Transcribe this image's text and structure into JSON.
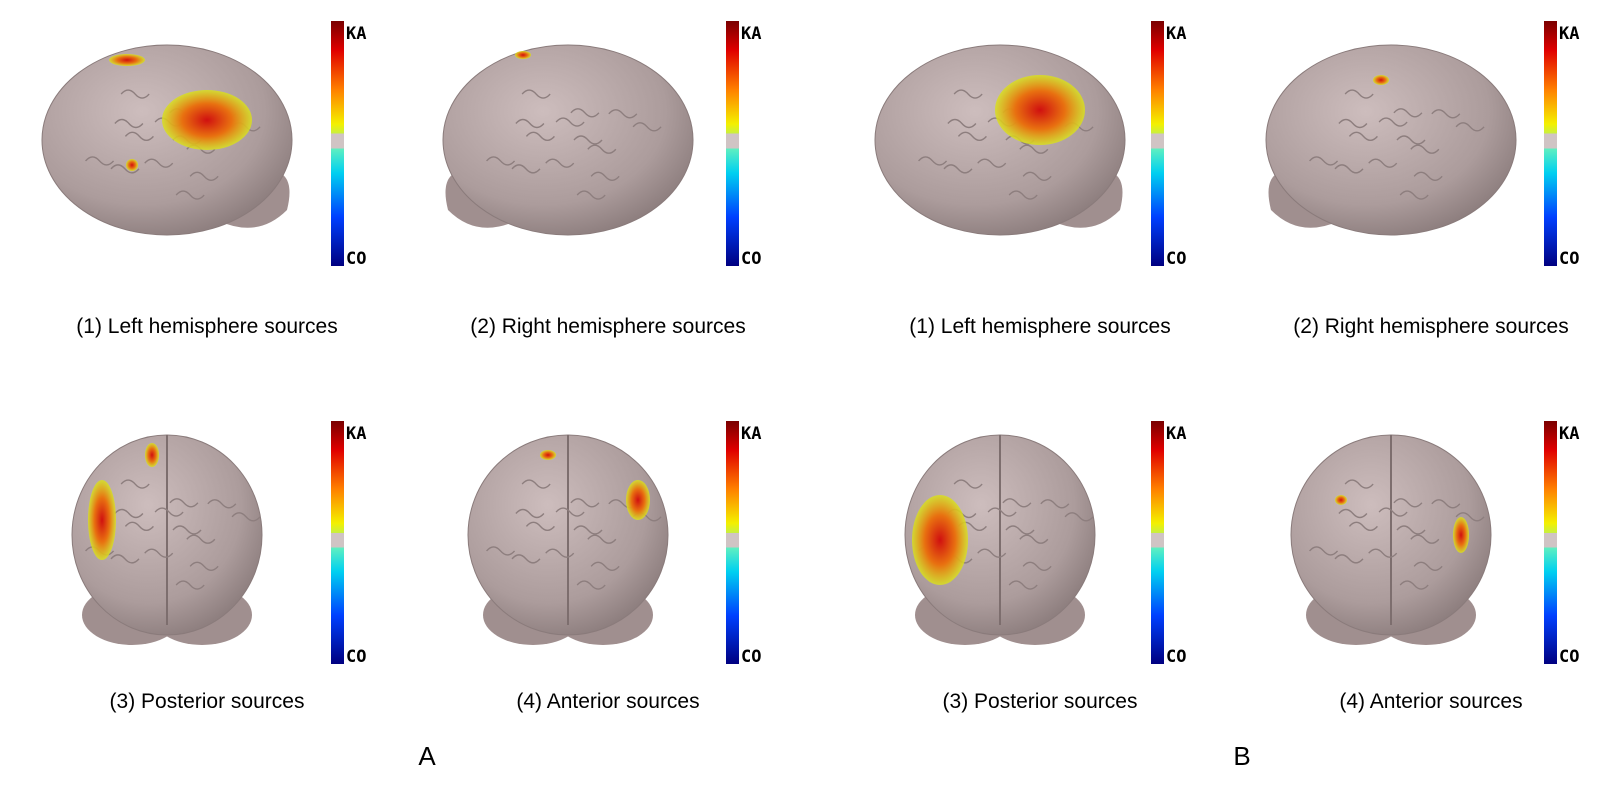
{
  "figure": {
    "panels": [
      {
        "label": "A",
        "views": [
          {
            "caption": "(1) Left hemisphere sources",
            "scale_max": "KA",
            "scale_min": "CO"
          },
          {
            "caption": "(2) Right hemisphere sources",
            "scale_max": "KA",
            "scale_min": "CO"
          },
          {
            "caption": "(3) Posterior sources",
            "scale_max": "KA",
            "scale_min": "CO"
          },
          {
            "caption": "(4) Anterior sources",
            "scale_max": "KA",
            "scale_min": "CO"
          }
        ]
      },
      {
        "label": "B",
        "views": [
          {
            "caption": "(1) Left hemisphere sources",
            "scale_max": "KA",
            "scale_min": "CO"
          },
          {
            "caption": "(2) Right hemisphere sources",
            "scale_max": "KA",
            "scale_min": "CO"
          },
          {
            "caption": "(3) Posterior sources",
            "scale_max": "KA",
            "scale_min": "CO"
          },
          {
            "caption": "(4) Anterior sources",
            "scale_max": "KA",
            "scale_min": "CO"
          }
        ]
      }
    ]
  }
}
